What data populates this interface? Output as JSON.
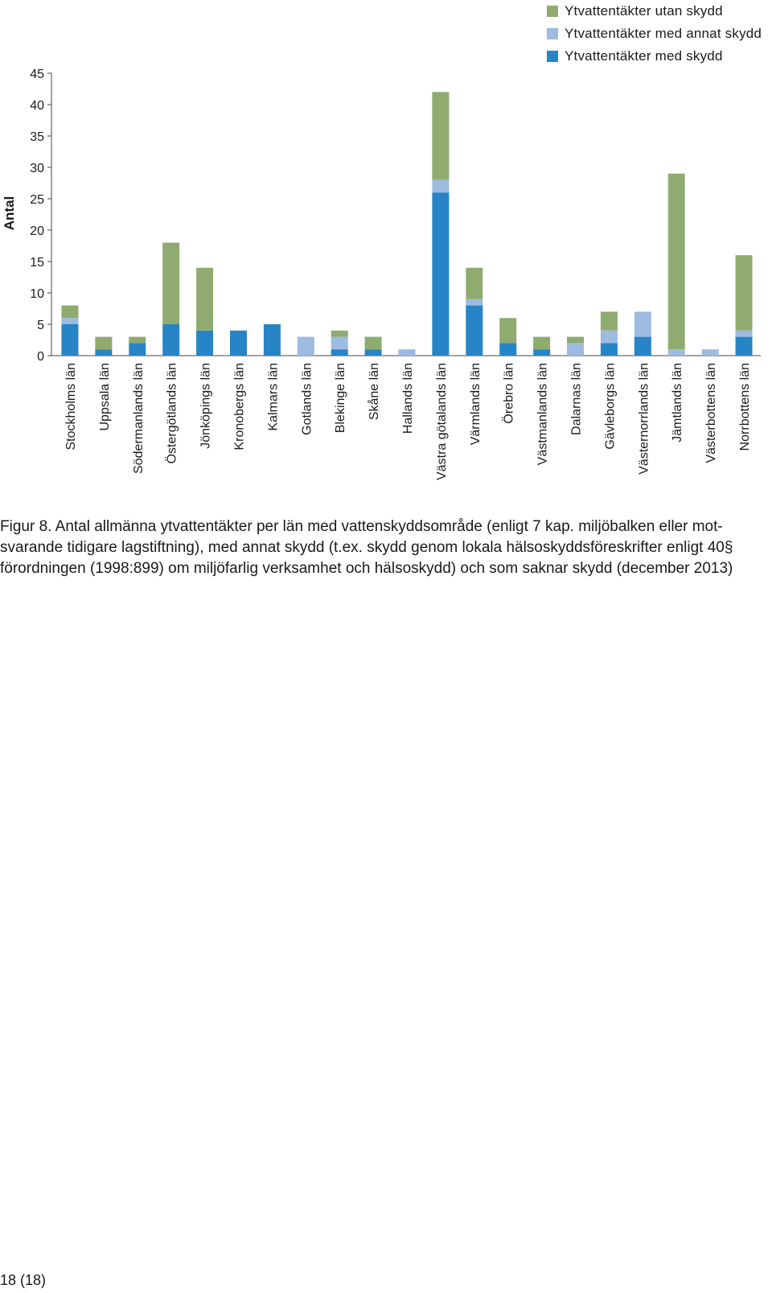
{
  "legend": {
    "items": [
      {
        "label": "Ytvattentäkter utan skydd",
        "color": "#8fab70"
      },
      {
        "label": "Ytvattentäkter med annat skydd",
        "color": "#9dbbe0"
      },
      {
        "label": "Ytvattentäkter med skydd",
        "color": "#2784c6"
      }
    ]
  },
  "chart_data": {
    "type": "bar",
    "stacked": true,
    "ylabel": "Antal",
    "xlabel": "",
    "ylim": [
      0,
      45
    ],
    "yticks": [
      0,
      5,
      10,
      15,
      20,
      25,
      30,
      35,
      40,
      45
    ],
    "grid": false,
    "legend_position": "top-right",
    "categories": [
      "Stockholms län",
      "Uppsala län",
      "Södermanlands län",
      "Östergötlands län",
      "Jönköpings län",
      "Kronobergs län",
      "Kalmars län",
      "Gotlands län",
      "Blekinge län",
      "Skåne län",
      "Hallands län",
      "Västra götalands län",
      "Värmlands län",
      "Örebro län",
      "Västmanlands län",
      "Dalarnas län",
      "Gävleborgs län",
      "Västernorrlands län",
      "Jämtlands län",
      "Västerbottens län",
      "Norrbottens län"
    ],
    "series": [
      {
        "name": "Ytvattentäkter med skydd",
        "color": "#2784c6",
        "values": [
          5,
          1,
          2,
          5,
          4,
          4,
          5,
          0,
          1,
          1,
          0,
          26,
          8,
          2,
          1,
          0,
          2,
          3,
          0,
          0,
          3
        ]
      },
      {
        "name": "Ytvattentäkter med annat skydd",
        "color": "#9dbbe0",
        "values": [
          1,
          0,
          0,
          0,
          0,
          0,
          0,
          3,
          2,
          0,
          1,
          2,
          1,
          0,
          0,
          2,
          2,
          4,
          1,
          1,
          1
        ]
      },
      {
        "name": "Ytvattentäkter utan skydd",
        "color": "#8fab70",
        "values": [
          2,
          2,
          1,
          13,
          10,
          0,
          0,
          0,
          1,
          2,
          0,
          14,
          5,
          4,
          2,
          1,
          3,
          0,
          28,
          0,
          12
        ]
      }
    ]
  },
  "caption": {
    "line1": "Figur 8. Antal allmänna ytvattentäkter per län med vattenskyddsområde (enligt 7 kap. miljöbalken eller mot-",
    "line2": "svarande tidigare lagstiftning), med annat skydd (t.ex. skydd genom lokala hälsoskyddsföreskrifter enligt 40§",
    "line3": "förordningen (1998:899) om miljöfarlig verksamhet och hälsoskydd) och som saknar skydd (december 2013)"
  },
  "page_number": "18 (18)"
}
